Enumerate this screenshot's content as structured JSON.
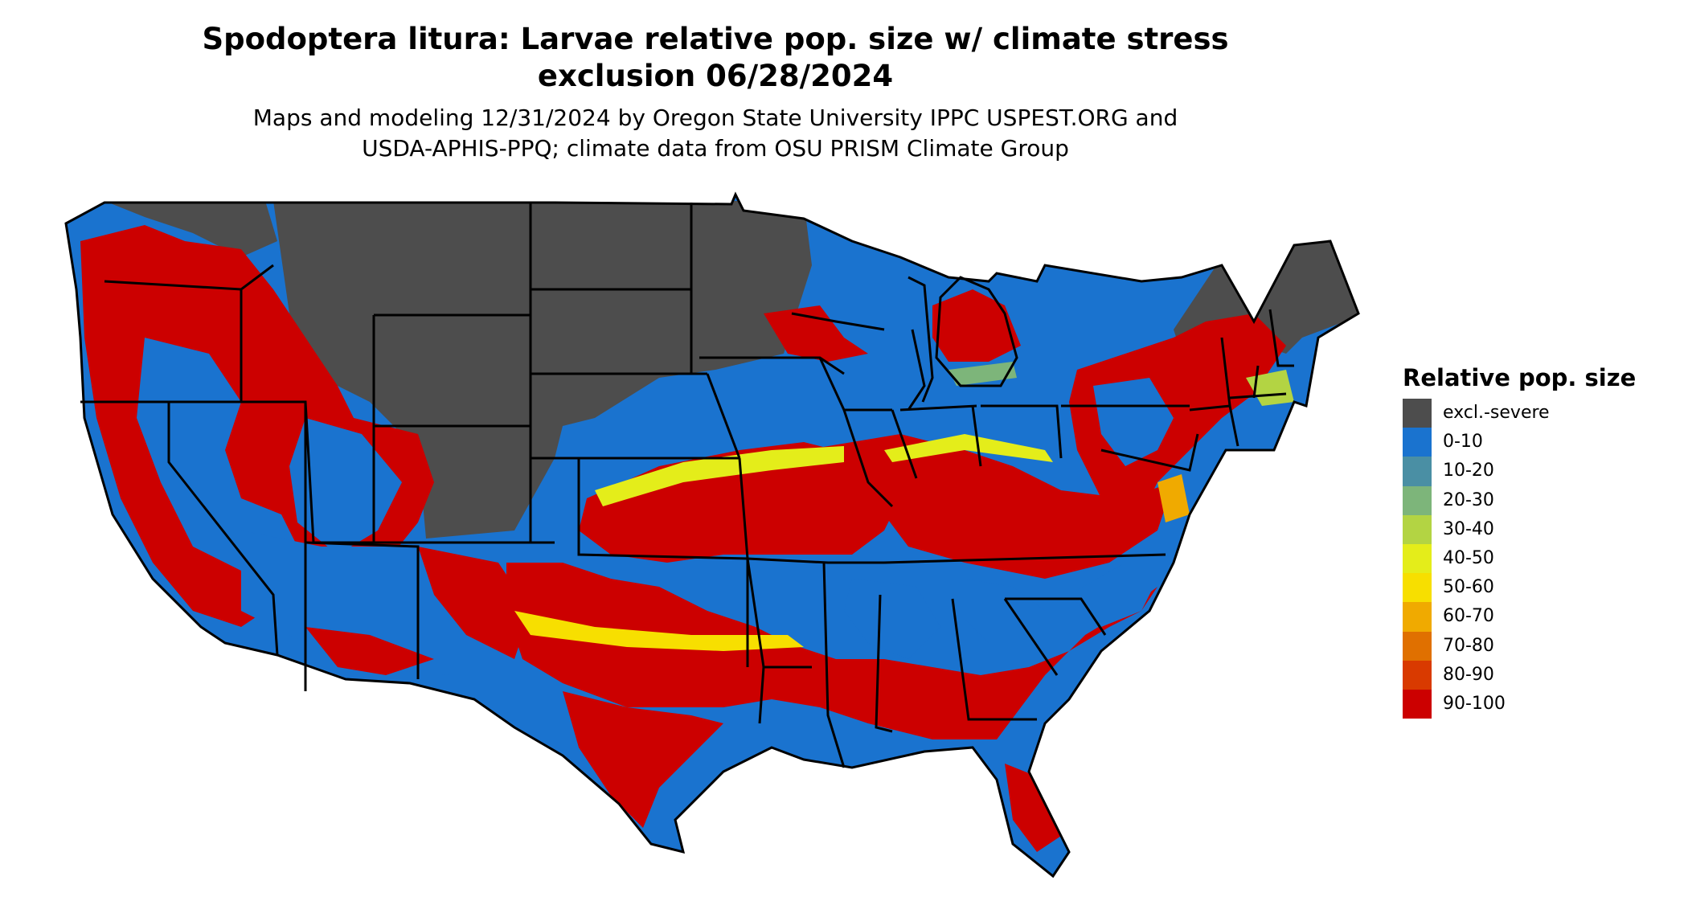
{
  "title": {
    "line1": "Spodoptera litura: Larvae relative pop. size w/ climate stress",
    "line2": "exclusion 06/28/2024"
  },
  "subtitle": {
    "line1": "Maps and modeling 12/31/2024 by Oregon State University IPPC USPEST.ORG and",
    "line2": "USDA-APHIS-PPQ; climate data from OSU PRISM Climate Group"
  },
  "legend": {
    "title": "Relative pop. size",
    "items": [
      {
        "label": "excl.-severe",
        "color": "#4d4d4d"
      },
      {
        "label": "0-10",
        "color": "#1a73cf"
      },
      {
        "label": "10-20",
        "color": "#4a8fa4"
      },
      {
        "label": "20-30",
        "color": "#7db57a"
      },
      {
        "label": "30-40",
        "color": "#b3d443"
      },
      {
        "label": "40-50",
        "color": "#e4ed1a"
      },
      {
        "label": "50-60",
        "color": "#f7df00"
      },
      {
        "label": "60-70",
        "color": "#f0aa00"
      },
      {
        "label": "70-80",
        "color": "#e07000"
      },
      {
        "label": "80-90",
        "color": "#d93a00"
      },
      {
        "label": "90-100",
        "color": "#cc0000"
      }
    ]
  }
}
